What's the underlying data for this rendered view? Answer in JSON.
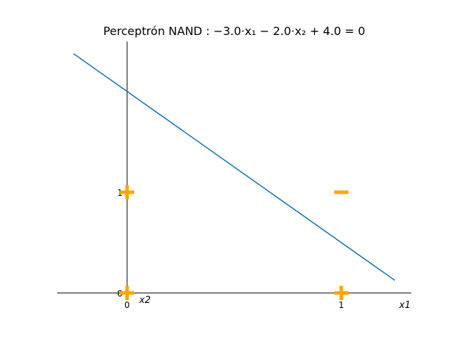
{
  "chart_data": {
    "type": "scatter",
    "title": "Perceptrón NAND : −3.0·x₁ − 2.0·x₂ + 4.0 = 0",
    "xlabel": "x1",
    "ylabel": "x2",
    "xlim": [
      -0.33,
      1.33
    ],
    "ylim": [
      -0.18,
      2.5
    ],
    "x_ticks": [
      "0",
      "1"
    ],
    "y_ticks": [
      "0",
      "1"
    ],
    "grid": false,
    "points": [
      {
        "x": 0,
        "y": 0,
        "marker": "+"
      },
      {
        "x": 0,
        "y": 1,
        "marker": "+"
      },
      {
        "x": 1,
        "y": 0,
        "marker": "+"
      },
      {
        "x": 1,
        "y": 1,
        "marker": "−"
      }
    ],
    "decision_line": {
      "weights": [
        -3.0,
        -2.0
      ],
      "bias": 4.0,
      "x_range": [
        -0.25,
        1.25
      ]
    },
    "colors": {
      "marker": "#ffa500",
      "line": "#1f77b4",
      "axis": "#000000"
    }
  }
}
